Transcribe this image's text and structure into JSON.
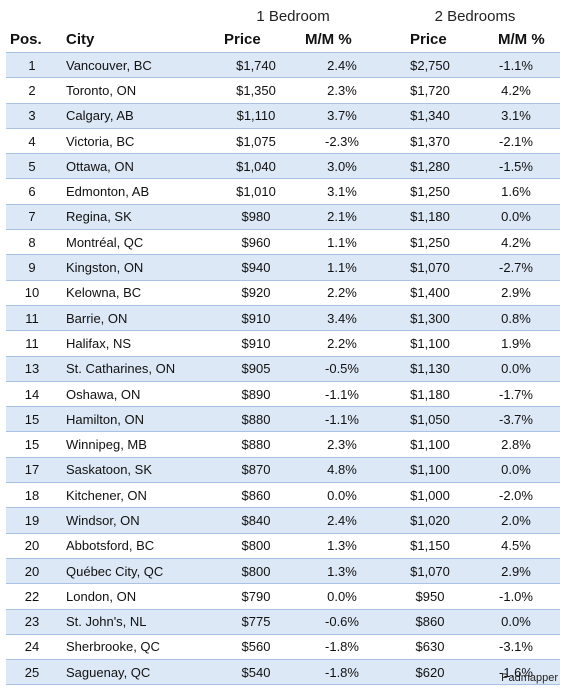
{
  "headers": {
    "group1": "1 Bedroom",
    "group2": "2 Bedrooms",
    "pos": "Pos.",
    "city": "City",
    "price1": "Price",
    "mm1": "M/M %",
    "price2": "Price",
    "mm2": "M/M %"
  },
  "rows": [
    {
      "pos": "1",
      "city": "Vancouver, BC",
      "p1": "$1,740",
      "m1": "2.4%",
      "p2": "$2,750",
      "m2": "-1.1%"
    },
    {
      "pos": "2",
      "city": "Toronto, ON",
      "p1": "$1,350",
      "m1": "2.3%",
      "p2": "$1,720",
      "m2": "4.2%"
    },
    {
      "pos": "3",
      "city": "Calgary, AB",
      "p1": "$1,110",
      "m1": "3.7%",
      "p2": "$1,340",
      "m2": "3.1%"
    },
    {
      "pos": "4",
      "city": "Victoria, BC",
      "p1": "$1,075",
      "m1": "-2.3%",
      "p2": "$1,370",
      "m2": "-2.1%"
    },
    {
      "pos": "5",
      "city": "Ottawa, ON",
      "p1": "$1,040",
      "m1": "3.0%",
      "p2": "$1,280",
      "m2": "-1.5%"
    },
    {
      "pos": "6",
      "city": "Edmonton, AB",
      "p1": "$1,010",
      "m1": "3.1%",
      "p2": "$1,250",
      "m2": "1.6%"
    },
    {
      "pos": "7",
      "city": "Regina, SK",
      "p1": "$980",
      "m1": "2.1%",
      "p2": "$1,180",
      "m2": "0.0%"
    },
    {
      "pos": "8",
      "city": "Montréal, QC",
      "p1": "$960",
      "m1": "1.1%",
      "p2": "$1,250",
      "m2": "4.2%"
    },
    {
      "pos": "9",
      "city": "Kingston, ON",
      "p1": "$940",
      "m1": "1.1%",
      "p2": "$1,070",
      "m2": "-2.7%"
    },
    {
      "pos": "10",
      "city": "Kelowna, BC",
      "p1": "$920",
      "m1": "2.2%",
      "p2": "$1,400",
      "m2": "2.9%"
    },
    {
      "pos": "11",
      "city": "Barrie, ON",
      "p1": "$910",
      "m1": "3.4%",
      "p2": "$1,300",
      "m2": "0.8%"
    },
    {
      "pos": "11",
      "city": "Halifax, NS",
      "p1": "$910",
      "m1": "2.2%",
      "p2": "$1,100",
      "m2": "1.9%"
    },
    {
      "pos": "13",
      "city": "St. Catharines, ON",
      "p1": "$905",
      "m1": "-0.5%",
      "p2": "$1,130",
      "m2": "0.0%"
    },
    {
      "pos": "14",
      "city": "Oshawa, ON",
      "p1": "$890",
      "m1": "-1.1%",
      "p2": "$1,180",
      "m2": "-1.7%"
    },
    {
      "pos": "15",
      "city": "Hamilton, ON",
      "p1": "$880",
      "m1": "-1.1%",
      "p2": "$1,050",
      "m2": "-3.7%"
    },
    {
      "pos": "15",
      "city": "Winnipeg, MB",
      "p1": "$880",
      "m1": "2.3%",
      "p2": "$1,100",
      "m2": "2.8%"
    },
    {
      "pos": "17",
      "city": "Saskatoon, SK",
      "p1": "$870",
      "m1": "4.8%",
      "p2": "$1,100",
      "m2": "0.0%"
    },
    {
      "pos": "18",
      "city": "Kitchener, ON",
      "p1": "$860",
      "m1": "0.0%",
      "p2": "$1,000",
      "m2": "-2.0%"
    },
    {
      "pos": "19",
      "city": "Windsor, ON",
      "p1": "$840",
      "m1": "2.4%",
      "p2": "$1,020",
      "m2": "2.0%"
    },
    {
      "pos": "20",
      "city": "Abbotsford, BC",
      "p1": "$800",
      "m1": "1.3%",
      "p2": "$1,150",
      "m2": "4.5%"
    },
    {
      "pos": "20",
      "city": "Québec City, QC",
      "p1": "$800",
      "m1": "1.3%",
      "p2": "$1,070",
      "m2": "2.9%"
    },
    {
      "pos": "22",
      "city": "London, ON",
      "p1": "$790",
      "m1": "0.0%",
      "p2": "$950",
      "m2": "-1.0%"
    },
    {
      "pos": "23",
      "city": "St. John's, NL",
      "p1": "$775",
      "m1": "-0.6%",
      "p2": "$860",
      "m2": "0.0%"
    },
    {
      "pos": "24",
      "city": "Sherbrooke, QC",
      "p1": "$560",
      "m1": "-1.8%",
      "p2": "$630",
      "m2": "-3.1%"
    },
    {
      "pos": "25",
      "city": "Saguenay, QC",
      "p1": "$540",
      "m1": "-1.8%",
      "p2": "$620",
      "m2": "-1.6%"
    }
  ],
  "source": "Padmapper",
  "colors": {
    "row_band": "#dde8f6",
    "row_border": "#a9c2e3"
  }
}
